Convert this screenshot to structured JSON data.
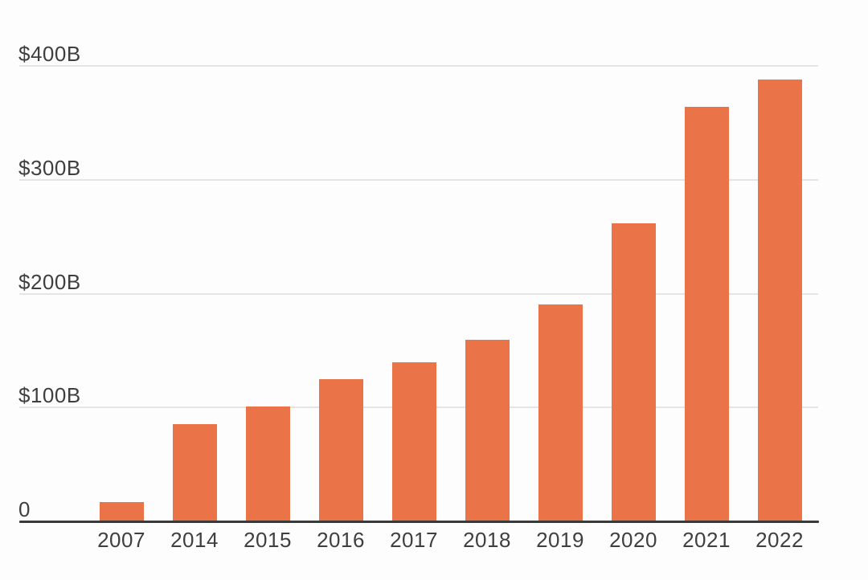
{
  "chart_data": {
    "type": "bar",
    "title": "",
    "xlabel": "",
    "ylabel": "",
    "categories": [
      "2007",
      "2014",
      "2015",
      "2016",
      "2017",
      "2018",
      "2019",
      "2020",
      "2021",
      "2022"
    ],
    "values": [
      16,
      85,
      100,
      124,
      139,
      159,
      190,
      261,
      363,
      387
    ],
    "value_unit_hint": "$B",
    "y_ticks": [
      {
        "value": 0,
        "label": "0"
      },
      {
        "value": 100,
        "label": "$100B"
      },
      {
        "value": 200,
        "label": "$200B"
      },
      {
        "value": 300,
        "label": "$300B"
      },
      {
        "value": 400,
        "label": "$400B"
      }
    ],
    "ylim": [
      0,
      400
    ],
    "grid": "horizontal",
    "legend": "none",
    "colors": {
      "bar": "#ea7347",
      "gridline": "#e5e5e5",
      "axis_line": "#3a3a3a",
      "tick_text": "#3f3f3f",
      "background": "#fdfdfd"
    }
  }
}
